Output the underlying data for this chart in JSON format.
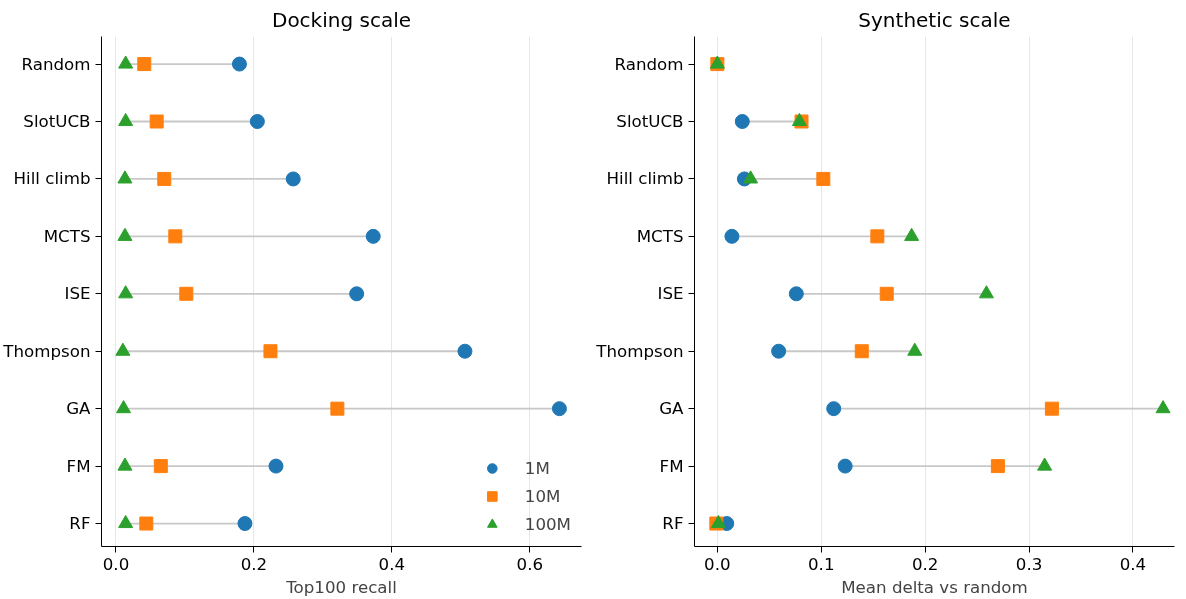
{
  "chart_data": [
    {
      "type": "scatter",
      "orientation": "horizontal",
      "title": "Docking scale",
      "xlabel": "Top100 recall",
      "categories": [
        "Random",
        "SlotUCB",
        "Hill climb",
        "MCTS",
        "ISE",
        "Thompson",
        "GA",
        "FM",
        "RF"
      ],
      "series": [
        {
          "name": "1M",
          "color": "#1f77b4",
          "marker": "circle",
          "values": [
            0.179,
            0.205,
            0.257,
            0.373,
            0.349,
            0.506,
            0.643,
            0.232,
            0.187
          ]
        },
        {
          "name": "10M",
          "color": "#ff7f0e",
          "marker": "square",
          "values": [
            0.041,
            0.059,
            0.07,
            0.086,
            0.102,
            0.224,
            0.321,
            0.065,
            0.044
          ]
        },
        {
          "name": "100M",
          "color": "#2ca02c",
          "marker": "triangle",
          "values": [
            0.014,
            0.014,
            0.013,
            0.013,
            0.014,
            0.01,
            0.011,
            0.013,
            0.014
          ]
        }
      ],
      "xlim": [
        -0.021,
        0.675
      ],
      "xticks": [
        {
          "value": 0,
          "label": "0.0"
        },
        0.2,
        0.4,
        0.6
      ],
      "grid": "x",
      "legend": "bottom right"
    },
    {
      "type": "scatter",
      "orientation": "horizontal",
      "title": "Synthetic scale",
      "xlabel": "Mean delta vs random",
      "categories": [
        "Random",
        "SlotUCB",
        "Hill climb",
        "MCTS",
        "ISE",
        "Thompson",
        "GA",
        "FM",
        "RF"
      ],
      "series": [
        {
          "color": "#1f77b4",
          "marker": "circle",
          "values": [
            null,
            0.024,
            0.026,
            0.014,
            0.076,
            0.059,
            0.112,
            0.123,
            0.009
          ]
        },
        {
          "color": "#ff7f0e",
          "marker": "square",
          "values": [
            0.0,
            0.081,
            0.102,
            0.154,
            0.163,
            0.139,
            0.322,
            0.27,
            -0.001
          ]
        },
        {
          "color": "#2ca02c",
          "marker": "triangle",
          "values": [
            0.0,
            0.079,
            0.032,
            0.187,
            0.259,
            0.19,
            0.429,
            0.315,
            0.001
          ]
        }
      ],
      "xlim": [
        -0.022,
        0.44
      ],
      "xticks": [
        {
          "value": 0,
          "label": "0.0"
        },
        0.1,
        0.2,
        0.3,
        0.4
      ],
      "grid": "x"
    }
  ]
}
